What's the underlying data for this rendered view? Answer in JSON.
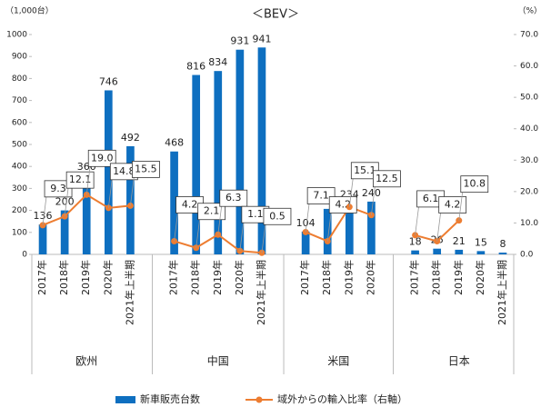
{
  "chart_data": {
    "type": "bar_line",
    "title": "＜BEV＞",
    "y_unit": "（1,000台）",
    "y2_unit": "（%）",
    "groups": [
      {
        "name": "欧州",
        "categories": [
          "2017年",
          "2018年",
          "2019年",
          "2020年",
          "2021年上半期"
        ]
      },
      {
        "name": "中国",
        "categories": [
          "2017年",
          "2018年",
          "2019年",
          "2020年",
          "2021年上半期"
        ]
      },
      {
        "name": "米国",
        "categories": [
          "2017年",
          "2018年",
          "2019年",
          "2020年"
        ]
      },
      {
        "name": "日本",
        "categories": [
          "2017年",
          "2018年",
          "2019年",
          "2020年",
          "2021年上半期"
        ]
      }
    ],
    "series": [
      {
        "name": "新車販売台数",
        "color": "#0e6fc0",
        "values": [
          136,
          200,
          360,
          746,
          492,
          468,
          816,
          834,
          931,
          941,
          104,
          207,
          234,
          240,
          18,
          26,
          21,
          15,
          8
        ]
      },
      {
        "name": "域外からの輸入比率（右軸）",
        "color": "#ed7d31",
        "axis": "y2",
        "values": [
          9.3,
          12.1,
          19.0,
          14.8,
          15.5,
          4.2,
          2.1,
          6.3,
          1.1,
          0.5,
          7.1,
          4.2,
          15.1,
          12.5,
          6.1,
          4.2,
          10.8,
          null,
          null
        ],
        "value_labels": [
          "9.3",
          "12.1",
          "19.0",
          "14.8",
          "15.5",
          "4.2",
          "2.1",
          "6.3",
          "1.1",
          "0.5",
          "7.1",
          "4.2",
          "15.1",
          "12.5",
          "6.1",
          "4.2",
          "10.8",
          null,
          null
        ]
      }
    ],
    "ylim": [
      0,
      1000
    ],
    "yticks": [
      0,
      100,
      200,
      300,
      400,
      500,
      600,
      700,
      800,
      900,
      1000
    ],
    "y2lim": [
      0,
      70
    ],
    "y2ticks": [
      {
        "value": 0,
        "label": "0.0"
      },
      {
        "value": 10,
        "label": "10.0"
      },
      {
        "value": 20,
        "label": "20.0"
      },
      {
        "value": 30,
        "label": "30.0"
      },
      {
        "value": 40,
        "label": "40.0"
      },
      {
        "value": 50,
        "label": "50.0"
      },
      {
        "value": 60,
        "label": "60.0"
      },
      {
        "value": 70,
        "label": "70.0"
      }
    ]
  }
}
